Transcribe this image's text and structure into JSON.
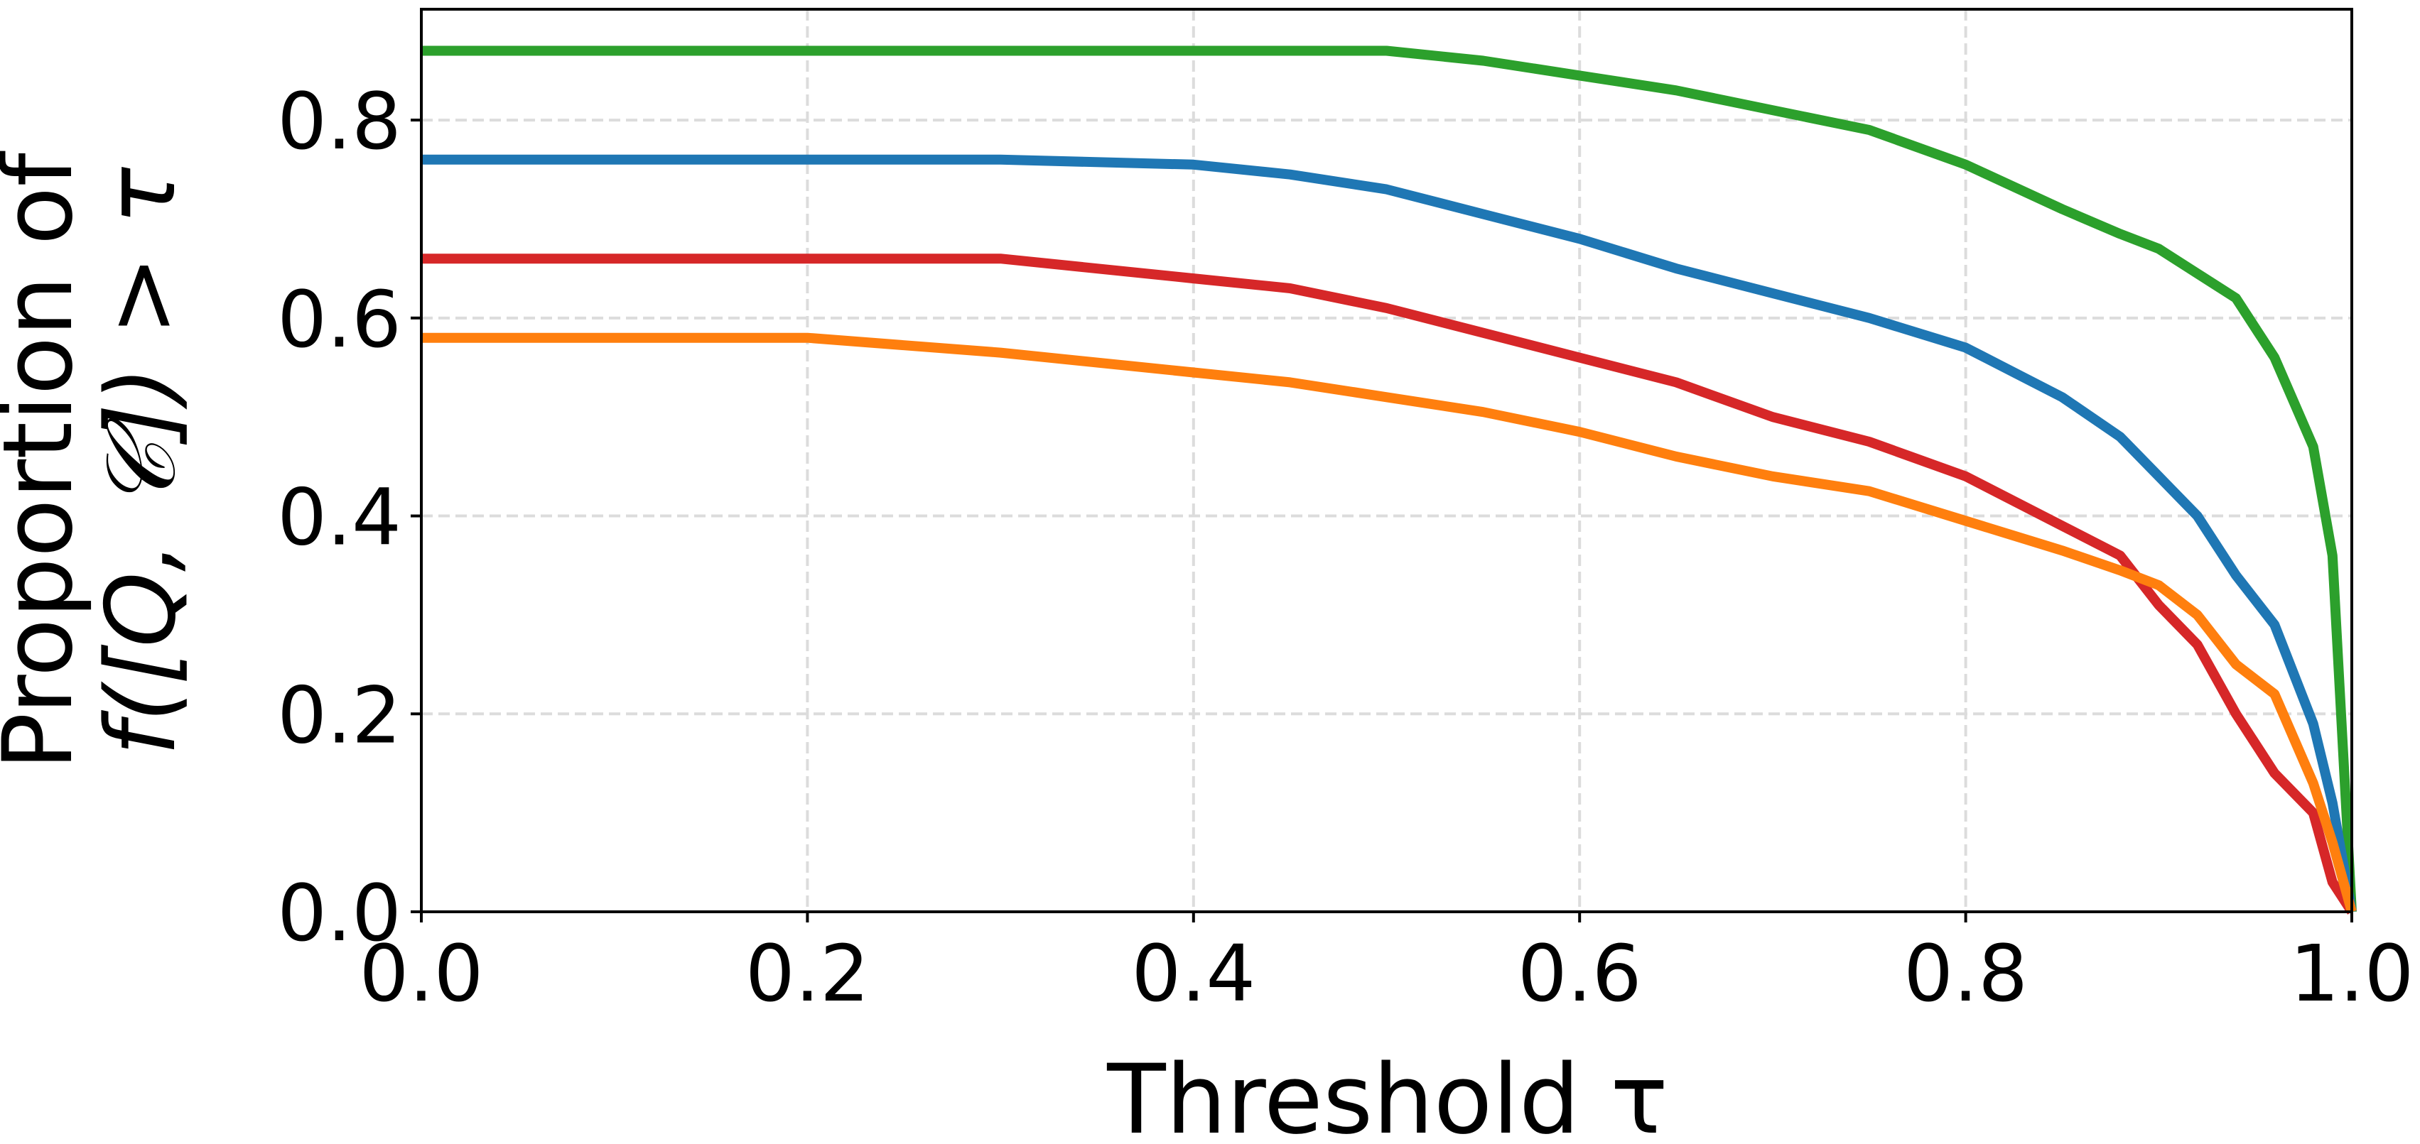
{
  "chart_data": {
    "type": "line",
    "xlabel": "Threshold τ",
    "ylabel": [
      "Proportion of",
      "f([Q, 𝒞]) > τ"
    ],
    "x": [
      0,
      0.1,
      0.2,
      0.3,
      0.4,
      0.45,
      0.5,
      0.55,
      0.6,
      0.65,
      0.7,
      0.75,
      0.8,
      0.85,
      0.88,
      0.9,
      0.92,
      0.94,
      0.96,
      0.98,
      0.99,
      1.0
    ],
    "series": [
      {
        "color": "#2ca02c",
        "values": [
          0.87,
          0.87,
          0.87,
          0.87,
          0.87,
          0.87,
          0.87,
          0.86,
          0.845,
          0.83,
          0.81,
          0.79,
          0.755,
          0.71,
          0.685,
          0.67,
          0.645,
          0.62,
          0.56,
          0.47,
          0.36,
          0
        ]
      },
      {
        "color": "#1f77b4",
        "values": [
          0.76,
          0.76,
          0.76,
          0.76,
          0.755,
          0.745,
          0.73,
          0.705,
          0.68,
          0.65,
          0.625,
          0.6,
          0.57,
          0.52,
          0.48,
          0.44,
          0.4,
          0.34,
          0.29,
          0.19,
          0.11,
          0
        ]
      },
      {
        "color": "#d62728",
        "values": [
          0.66,
          0.66,
          0.66,
          0.66,
          0.64,
          0.63,
          0.61,
          0.585,
          0.56,
          0.535,
          0.5,
          0.475,
          0.44,
          0.39,
          0.36,
          0.31,
          0.27,
          0.2,
          0.14,
          0.1,
          0.03,
          0
        ]
      },
      {
        "color": "#ff7f0e",
        "values": [
          0.58,
          0.58,
          0.58,
          0.565,
          0.545,
          0.535,
          0.52,
          0.505,
          0.485,
          0.46,
          0.44,
          0.425,
          0.395,
          0.365,
          0.345,
          0.33,
          0.3,
          0.25,
          0.22,
          0.13,
          0.07,
          0
        ]
      }
    ],
    "xlim": [
      0,
      1
    ],
    "ylim": [
      0,
      0.912
    ],
    "xticks": [
      {
        "value": 0,
        "label": "0.0"
      },
      0.2,
      0.4,
      0.6,
      0.8,
      {
        "value": 1,
        "label": "1.0"
      }
    ],
    "yticks": [
      {
        "value": 0,
        "label": "0.0"
      },
      0.2,
      0.4,
      0.6,
      0.8
    ],
    "grid": true
  }
}
